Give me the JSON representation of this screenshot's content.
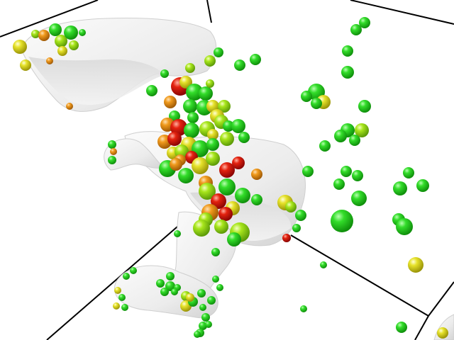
{
  "colors": {
    "background": "#ffffff",
    "box_edge": "#000000",
    "surface": "#efefef",
    "surface_shade": "#d6d6d6",
    "sphere_palette": [
      "#22c51f",
      "#9be21a",
      "#e1e02a",
      "#f0a21e",
      "#e8481a",
      "#dd0f0f"
    ]
  },
  "scene": {
    "icon": "molecule-surface-icon"
  }
}
